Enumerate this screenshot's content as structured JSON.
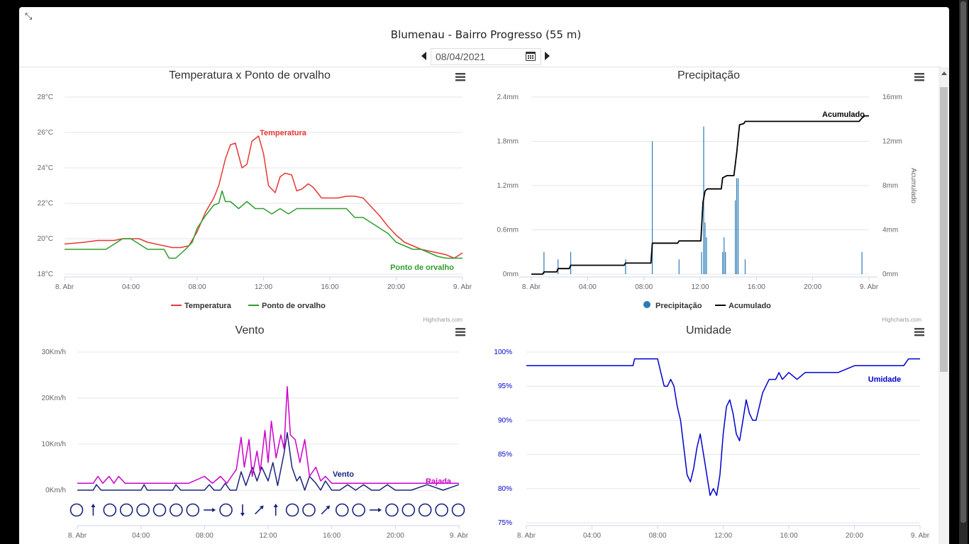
{
  "header": {
    "title": "Blumenau - Bairro Progresso (55 m)",
    "date_value": "08/04/2021"
  },
  "icons": {
    "collapse": "compress-icon",
    "prev": "caret-left-icon",
    "next": "caret-right-icon",
    "calendar": "calendar-icon",
    "menu": "hamburger-menu-icon"
  },
  "credits": "Highcharts.com",
  "x_axis": {
    "labels": [
      "8. Abr",
      "04:00",
      "08:00",
      "12:00",
      "16:00",
      "20:00",
      "9. Abr"
    ],
    "hours": [
      0,
      4,
      8,
      12,
      16,
      20,
      24
    ]
  },
  "chart_data": [
    {
      "type": "line",
      "title": "Temperatura x Ponto de orvalho",
      "xlabel": "",
      "ylabel": "",
      "ylim": [
        18,
        28
      ],
      "y_ticks": [
        18,
        20,
        22,
        24,
        26,
        28
      ],
      "y_tick_labels": [
        "18°C",
        "20°C",
        "22°C",
        "24°C",
        "26°C",
        "28°C"
      ],
      "legend": "bottom-center",
      "series": [
        {
          "name": "Temperatura",
          "color": "#e53935",
          "label": "Temperatura",
          "x": [
            0,
            1.2,
            2,
            3,
            3.5,
            4,
            4.5,
            5,
            5.5,
            6,
            6.5,
            7,
            7.5,
            8,
            8.5,
            9,
            9.3,
            9.7,
            10,
            10.3,
            10.7,
            11,
            11.3,
            11.7,
            12,
            12.3,
            12.7,
            13,
            13.3,
            13.7,
            14,
            14.3,
            14.7,
            15,
            15.5,
            16,
            16.5,
            17,
            17.5,
            18,
            18.5,
            19,
            19.5,
            20,
            20.5,
            21,
            21.5,
            22,
            22.5,
            23,
            23.5,
            24
          ],
          "y": [
            19.7,
            19.8,
            19.9,
            19.9,
            20,
            20,
            20,
            19.8,
            19.7,
            19.6,
            19.5,
            19.5,
            19.6,
            20.4,
            21.5,
            22.3,
            23,
            24.5,
            25.3,
            25.4,
            24,
            24.2,
            25.5,
            25.8,
            24.8,
            23,
            22.6,
            23.5,
            23.7,
            23.6,
            22.7,
            22.8,
            23.1,
            22.9,
            22.3,
            22.3,
            22.3,
            22.4,
            22.4,
            22.3,
            21.8,
            21.3,
            20.7,
            20.2,
            19.8,
            19.6,
            19.4,
            19.3,
            19.2,
            19.1,
            18.9,
            19.2
          ]
        },
        {
          "name": "Ponto de orvalho",
          "color": "#2e9e2e",
          "label": "Ponto de orvalho",
          "x": [
            0,
            2.5,
            3.5,
            4,
            5,
            6,
            6.3,
            6.7,
            7.3,
            7.7,
            8,
            8.5,
            9,
            9.3,
            9.5,
            9.7,
            10,
            10.5,
            11,
            11.5,
            12,
            12.5,
            13,
            13.5,
            14,
            15,
            16,
            17,
            17.5,
            18,
            19,
            19.5,
            20,
            21,
            21.5,
            22,
            22.5,
            23,
            24
          ],
          "y": [
            19.4,
            19.4,
            20,
            20,
            19.4,
            19.4,
            18.9,
            18.9,
            19.4,
            19.8,
            20.6,
            21.3,
            21.9,
            22,
            22.7,
            22.1,
            22.1,
            21.7,
            22.1,
            21.7,
            21.7,
            21.4,
            21.7,
            21.4,
            21.7,
            21.7,
            21.7,
            21.7,
            21.2,
            21.2,
            20.6,
            20.3,
            19.8,
            19.4,
            19.4,
            19.2,
            19,
            18.9,
            18.9
          ]
        }
      ]
    },
    {
      "type": "bar+line",
      "title": "Precipitação",
      "xlabel": "",
      "ylabel": "",
      "y2label": "Acumulado",
      "ylim": [
        0,
        2.4
      ],
      "y_ticks": [
        0,
        0.6,
        1.2,
        1.8,
        2.4
      ],
      "y_tick_labels": [
        "0mm",
        "0.6mm",
        "1.2mm",
        "1.8mm",
        "2.4mm"
      ],
      "y2lim": [
        0,
        16
      ],
      "y2_ticks": [
        0,
        4,
        8,
        12,
        16
      ],
      "y2_tick_labels": [
        "0mm",
        "4mm",
        "8mm",
        "12mm",
        "16mm"
      ],
      "legend": "bottom-center",
      "series": [
        {
          "name": "Precipitação",
          "type": "column",
          "color": "#2b7bb9",
          "x": [
            0.9,
            1.9,
            2.8,
            6.7,
            8.6,
            10.5,
            12.1,
            12.25,
            12.35,
            12.45,
            13.6,
            13.7,
            13.8,
            14.5,
            14.6,
            14.7,
            15.2,
            23.5
          ],
          "y": [
            0.3,
            0.2,
            0.3,
            0.2,
            1.8,
            0.2,
            0.3,
            2.0,
            0.7,
            0.5,
            0.3,
            0.5,
            0.3,
            1.0,
            1.3,
            1.3,
            0.2,
            0.3
          ]
        },
        {
          "name": "Acumulado",
          "type": "line",
          "color": "#000000",
          "label": "Acumulado",
          "x": [
            0,
            0.8,
            0.9,
            1.8,
            1.9,
            2.7,
            2.8,
            6.6,
            6.7,
            8.5,
            8.6,
            10.4,
            10.5,
            12.05,
            12.2,
            12.35,
            12.5,
            13.5,
            13.6,
            13.75,
            13.9,
            14.4,
            14.6,
            14.8,
            15.1,
            15.2,
            23.3,
            23.5,
            23.7,
            24
          ],
          "y": [
            0,
            0,
            0.2,
            0.2,
            0.5,
            0.5,
            0.8,
            0.8,
            1.0,
            1.0,
            2.8,
            2.8,
            3.0,
            3.0,
            6.5,
            7.5,
            7.7,
            7.7,
            8.7,
            8.8,
            8.9,
            8.9,
            11,
            13.5,
            13.6,
            13.8,
            13.8,
            14.1,
            14.3,
            14.3
          ]
        }
      ]
    },
    {
      "type": "line",
      "title": "Vento",
      "xlabel": "",
      "ylabel": "",
      "ylim": [
        0,
        30
      ],
      "y_ticks": [
        0,
        10,
        20,
        30
      ],
      "y_tick_labels": [
        "0Km/h",
        "10Km/h",
        "20Km/h",
        "30Km/h"
      ],
      "series": [
        {
          "name": "Vento",
          "color": "#1a237e",
          "label": "Vento",
          "x": [
            0,
            1,
            1.2,
            1.5,
            2,
            4,
            4.2,
            4.4,
            5,
            6,
            6.2,
            6.5,
            7,
            8,
            8.3,
            8.6,
            9,
            9.3,
            9.6,
            10,
            10.3,
            10.6,
            11,
            11.3,
            11.6,
            12,
            12.3,
            12.6,
            13,
            13.2,
            13.5,
            13.8,
            14,
            14.3,
            14.6,
            15,
            15.3,
            15.6,
            16,
            16.5,
            17,
            17.5,
            18,
            18.5,
            19,
            19.5,
            20,
            21,
            22,
            23,
            24
          ],
          "y": [
            0,
            0,
            1.2,
            0,
            0,
            0,
            1.2,
            0,
            0,
            0,
            1.2,
            0,
            0,
            0,
            1.2,
            0,
            0,
            1.5,
            0,
            0,
            4,
            1,
            5,
            2,
            5,
            2,
            6,
            1,
            8,
            12.5,
            5,
            2,
            3,
            0,
            3,
            1.5,
            0,
            2,
            0,
            0,
            1.2,
            0,
            1.2,
            0,
            0,
            1.2,
            0,
            0,
            1.2,
            0,
            1.2
          ]
        },
        {
          "name": "Rajada",
          "color": "#cc00cc",
          "label": "Rajada",
          "x": [
            0,
            1,
            1.3,
            1.6,
            2,
            2.3,
            2.6,
            3,
            3.3,
            3.6,
            4,
            5,
            6,
            7,
            8,
            8.5,
            9,
            9.4,
            9.7,
            10,
            10.3,
            10.5,
            10.8,
            11,
            11.3,
            11.5,
            11.8,
            12,
            12.2,
            12.5,
            12.8,
            13,
            13.2,
            13.4,
            13.7,
            14,
            14.3,
            14.6,
            15,
            15.3,
            15.6,
            16,
            16.5,
            17,
            17.5,
            18,
            18.5,
            19,
            20,
            21,
            22,
            23,
            24
          ],
          "y": [
            1.5,
            1.5,
            3,
            1.5,
            3,
            1.5,
            3,
            1.5,
            1.5,
            1.5,
            1.5,
            1.5,
            1.5,
            1.5,
            3,
            1.5,
            3,
            1.5,
            3,
            4.5,
            11.5,
            5,
            11,
            3,
            8.5,
            4,
            13,
            6,
            15,
            7,
            12,
            9,
            22.5,
            12,
            11,
            6,
            11,
            3,
            5,
            2,
            3,
            1.5,
            1.5,
            1.5,
            1.5,
            1.5,
            1.5,
            1.5,
            1.5,
            1.5,
            1.5,
            1.5,
            1.5
          ]
        }
      ],
      "direction_icons": [
        "calm",
        "N",
        "calm",
        "calm",
        "calm",
        "calm",
        "calm",
        "calm",
        "E",
        "calm",
        "S",
        "NE",
        "N",
        "calm",
        "calm",
        "NE",
        "calm",
        "calm",
        "E",
        "calm",
        "calm",
        "calm",
        "calm",
        "calm"
      ]
    },
    {
      "type": "line",
      "title": "Umidade",
      "xlabel": "",
      "ylabel": "",
      "ylim": [
        75,
        100
      ],
      "y_ticks": [
        75,
        80,
        85,
        90,
        95,
        100
      ],
      "y_tick_labels": [
        "75%",
        "80%",
        "85%",
        "90%",
        "95%",
        "100%"
      ],
      "series": [
        {
          "name": "Umidade",
          "color": "#0000cc",
          "label": "Umidade",
          "x": [
            0,
            6.5,
            6.6,
            8,
            8.2,
            8.4,
            8.6,
            8.8,
            9,
            9.2,
            9.4,
            9.6,
            9.8,
            10,
            10.2,
            10.4,
            10.6,
            10.8,
            11,
            11.2,
            11.4,
            11.6,
            11.8,
            12,
            12.2,
            12.4,
            12.6,
            12.8,
            13,
            13.2,
            13.4,
            13.6,
            13.8,
            14,
            14.2,
            14.4,
            14.6,
            14.8,
            15,
            15.2,
            15.4,
            15.6,
            16,
            16.5,
            17,
            17.5,
            18,
            19,
            20,
            21,
            22,
            23,
            23.3,
            24
          ],
          "y": [
            98,
            98,
            99,
            99,
            97,
            95,
            95,
            96,
            95,
            92,
            90,
            86,
            82,
            81,
            83,
            86,
            88,
            85,
            82,
            79,
            80,
            79,
            82,
            88,
            92,
            93,
            91,
            88,
            87,
            90,
            93,
            91,
            90,
            90,
            92,
            94,
            95,
            96,
            96,
            96,
            97,
            96,
            97,
            96,
            97,
            97,
            97,
            97,
            98,
            98,
            98,
            98,
            99,
            99
          ]
        }
      ]
    }
  ]
}
